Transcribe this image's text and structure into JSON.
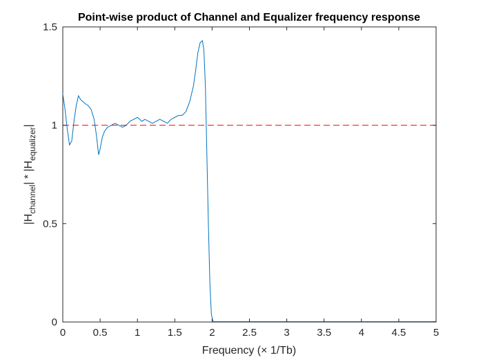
{
  "chart_data": {
    "type": "line",
    "title": "Point-wise product of Channel and Equalizer frequency response",
    "xlabel": "Frequency (× 1/Tb)",
    "ylabel": {
      "part1": "|H",
      "sub1": "channel",
      "part2": "| * |H",
      "sub2": "equalizer",
      "part3": "|"
    },
    "xlim": [
      0,
      5
    ],
    "ylim": [
      0,
      1.5
    ],
    "xticks": [
      0,
      0.5,
      1,
      1.5,
      2,
      2.5,
      3,
      3.5,
      4,
      4.5,
      5
    ],
    "xtick_labels": [
      "0",
      "0.5",
      "1",
      "1.5",
      "2",
      "2.5",
      "3",
      "3.5",
      "4",
      "4.5",
      "5"
    ],
    "yticks": [
      0,
      0.5,
      1,
      1.5
    ],
    "ytick_labels": [
      "0",
      "0.5",
      "1",
      "1.5"
    ],
    "grid": false,
    "series": [
      {
        "color": "#0072BD",
        "style": "solid",
        "x": [
          0,
          0.03,
          0.06,
          0.09,
          0.12,
          0.15,
          0.18,
          0.21,
          0.24,
          0.27,
          0.3,
          0.34,
          0.38,
          0.42,
          0.45,
          0.48,
          0.5,
          0.53,
          0.56,
          0.6,
          0.65,
          0.7,
          0.75,
          0.8,
          0.85,
          0.9,
          0.95,
          1.0,
          1.03,
          1.06,
          1.1,
          1.15,
          1.2,
          1.25,
          1.3,
          1.35,
          1.4,
          1.45,
          1.5,
          1.55,
          1.6,
          1.65,
          1.7,
          1.75,
          1.78,
          1.81,
          1.84,
          1.87,
          1.89,
          1.91,
          1.93,
          1.95,
          1.97,
          1.99,
          2.01,
          2.03,
          2.1,
          2.5,
          3,
          3.5,
          4,
          4.5,
          5
        ],
        "y": [
          1.16,
          1.08,
          0.98,
          0.9,
          0.92,
          1.02,
          1.1,
          1.15,
          1.13,
          1.12,
          1.11,
          1.1,
          1.08,
          1.03,
          0.95,
          0.85,
          0.88,
          0.94,
          0.97,
          0.99,
          1.0,
          1.01,
          1.0,
          0.99,
          1.0,
          1.02,
          1.03,
          1.04,
          1.03,
          1.02,
          1.03,
          1.02,
          1.01,
          1.02,
          1.03,
          1.02,
          1.01,
          1.03,
          1.04,
          1.05,
          1.05,
          1.07,
          1.12,
          1.2,
          1.28,
          1.37,
          1.42,
          1.43,
          1.38,
          1.2,
          0.85,
          0.5,
          0.2,
          0.04,
          0.005,
          0.002,
          0.002,
          0.002,
          0.002,
          0.002,
          0.002,
          0.002,
          0.002
        ]
      },
      {
        "color": "#FF0000",
        "style": "dashed",
        "x": [
          0,
          5
        ],
        "y": [
          1,
          1
        ]
      }
    ]
  }
}
